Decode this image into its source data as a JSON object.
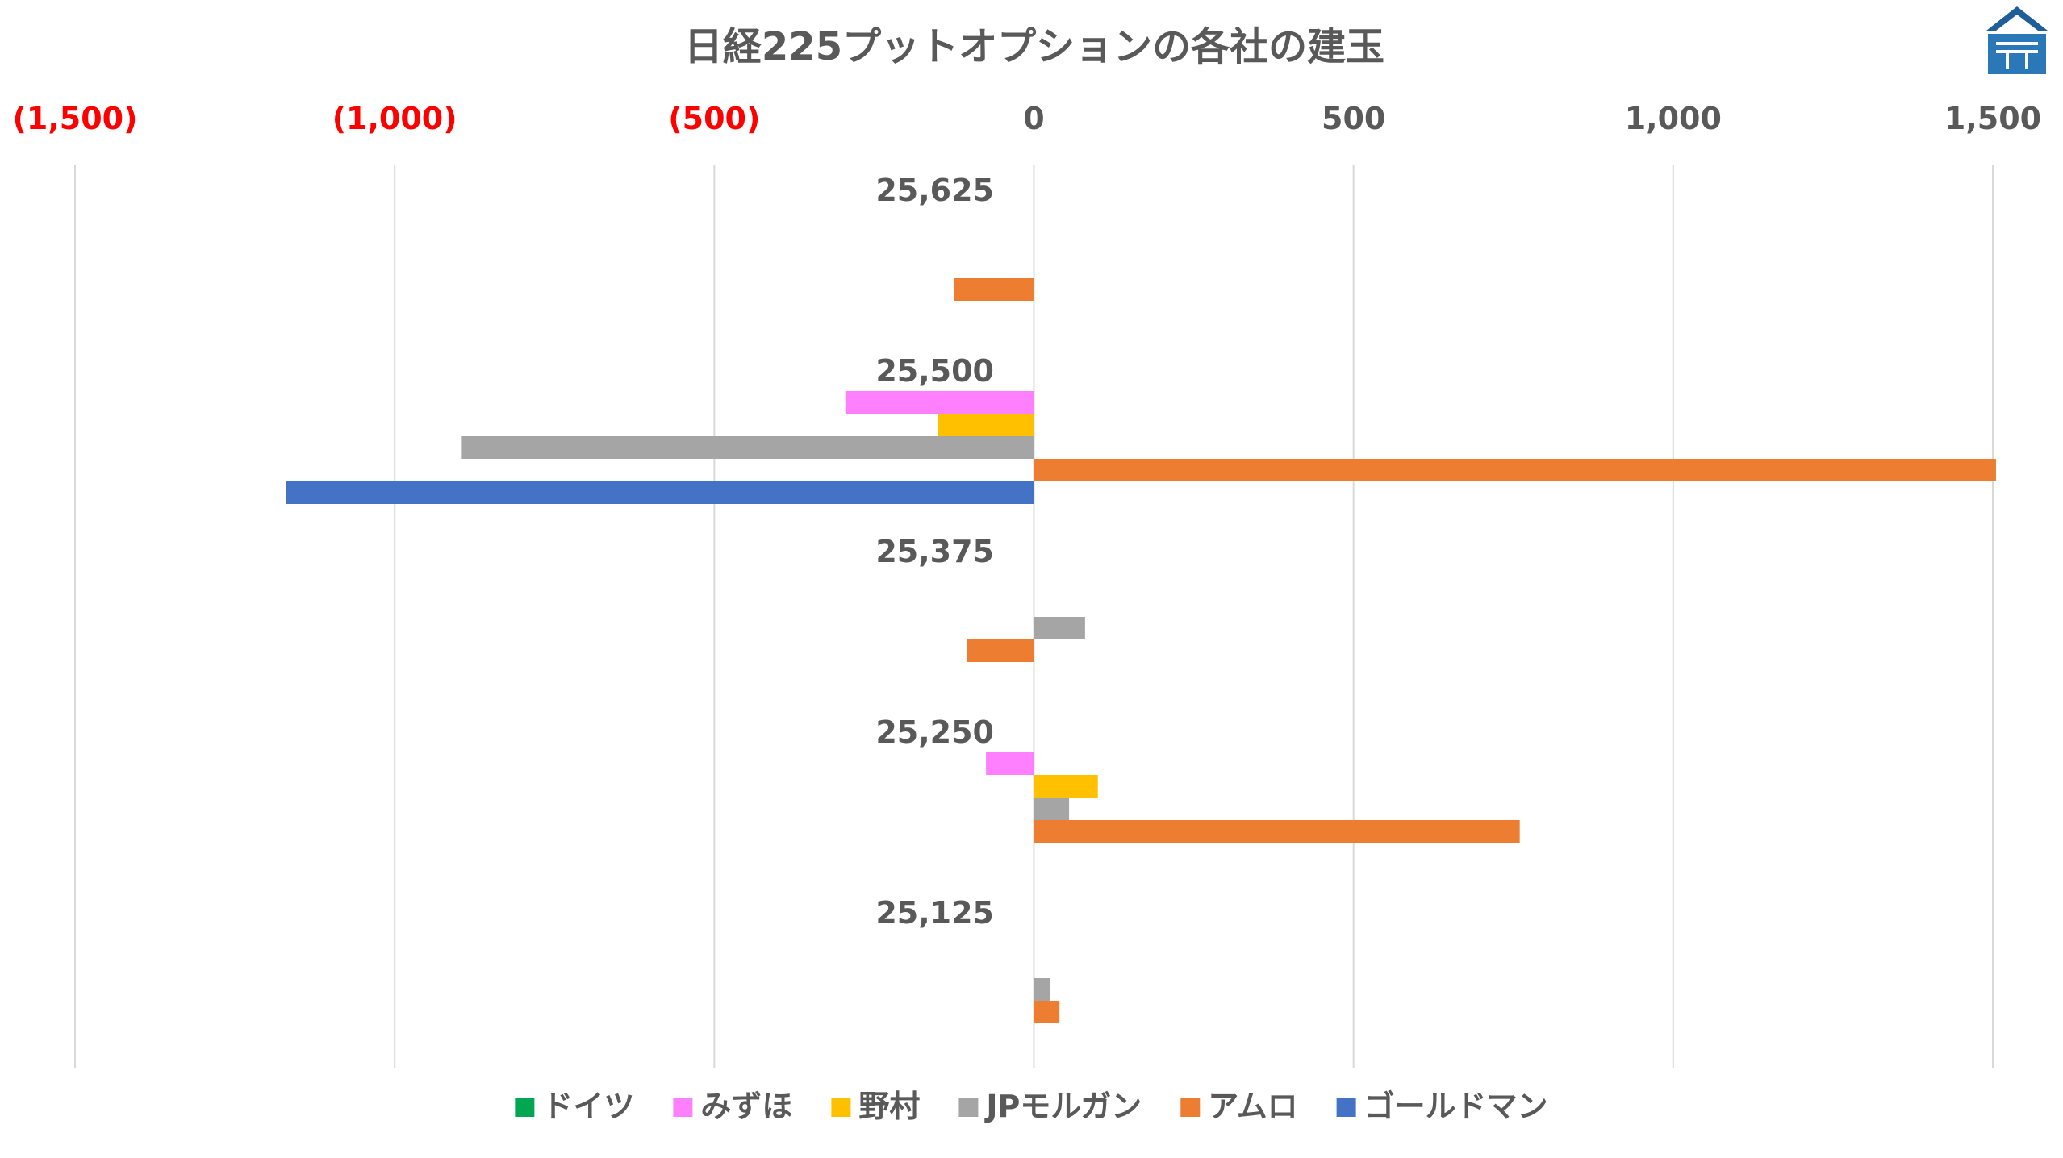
{
  "chart_data": {
    "type": "bar",
    "orientation": "horizontal",
    "title": "日経225プットオプションの各社の建玉",
    "categories": [
      "25,625",
      "25,500",
      "25,375",
      "25,250",
      "25,125"
    ],
    "xlim": [
      -1500,
      1500
    ],
    "x_ticks": [
      -1500,
      -1000,
      -500,
      0,
      500,
      1000,
      1500
    ],
    "x_tick_labels": [
      "(1,500)",
      "(1,000)",
      "(500)",
      "0",
      "500",
      "1,000",
      "1,500"
    ],
    "negative_tick_color": "#ff0000",
    "positive_tick_color": "#595959",
    "axis_position": "top",
    "grid": true,
    "legend_position": "bottom",
    "series": [
      {
        "name": "ドイツ",
        "color": "#00a651",
        "values": [
          0,
          0,
          0,
          0,
          0
        ]
      },
      {
        "name": "みずほ",
        "color": "#ff80ff",
        "values": [
          0,
          -295,
          0,
          -75,
          0
        ]
      },
      {
        "name": "野村",
        "color": "#ffc000",
        "values": [
          0,
          -150,
          0,
          100,
          0
        ]
      },
      {
        "name": "JPモルガン",
        "color": "#a5a5a5",
        "values": [
          0,
          -895,
          80,
          55,
          25
        ]
      },
      {
        "name": "アムロ",
        "color": "#ed7d31",
        "values": [
          -125,
          1505,
          -105,
          760,
          40
        ]
      },
      {
        "name": "ゴールドマン",
        "color": "#4472c4",
        "values": [
          0,
          -1170,
          0,
          0,
          0
        ]
      }
    ]
  },
  "logo": {
    "name": "house-logo",
    "color": "#1f5f99",
    "accent": "#3b8fd4"
  }
}
